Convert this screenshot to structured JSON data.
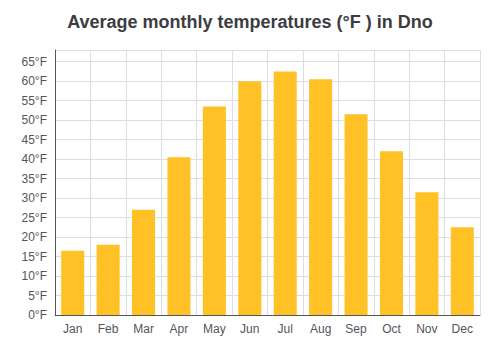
{
  "chart_data": {
    "type": "bar",
    "title": "Average monthly temperatures (°F ) in Dno",
    "categories": [
      "Jan",
      "Feb",
      "Mar",
      "Apr",
      "May",
      "Jun",
      "Jul",
      "Aug",
      "Sep",
      "Oct",
      "Nov",
      "Dec"
    ],
    "values": [
      16.5,
      18.0,
      27.0,
      40.5,
      53.5,
      60.0,
      62.5,
      60.5,
      51.5,
      42.0,
      31.5,
      22.5
    ],
    "color": "#FFC125",
    "ylim": [
      0,
      68
    ],
    "yticks": [
      {
        "value": 0,
        "label": "0°F"
      },
      {
        "value": 5,
        "label": "5°F"
      },
      {
        "value": 10,
        "label": "10°F"
      },
      {
        "value": 15,
        "label": "15°F"
      },
      {
        "value": 20,
        "label": "20°F"
      },
      {
        "value": 25,
        "label": "25°F"
      },
      {
        "value": 30,
        "label": "30°F"
      },
      {
        "value": 35,
        "label": "35°F"
      },
      {
        "value": 40,
        "label": "40°F"
      },
      {
        "value": 45,
        "label": "45°F"
      },
      {
        "value": 50,
        "label": "50°F"
      },
      {
        "value": 55,
        "label": "55°F"
      },
      {
        "value": 60,
        "label": "60°F"
      },
      {
        "value": 65,
        "label": "65°F"
      }
    ],
    "grid": true
  }
}
